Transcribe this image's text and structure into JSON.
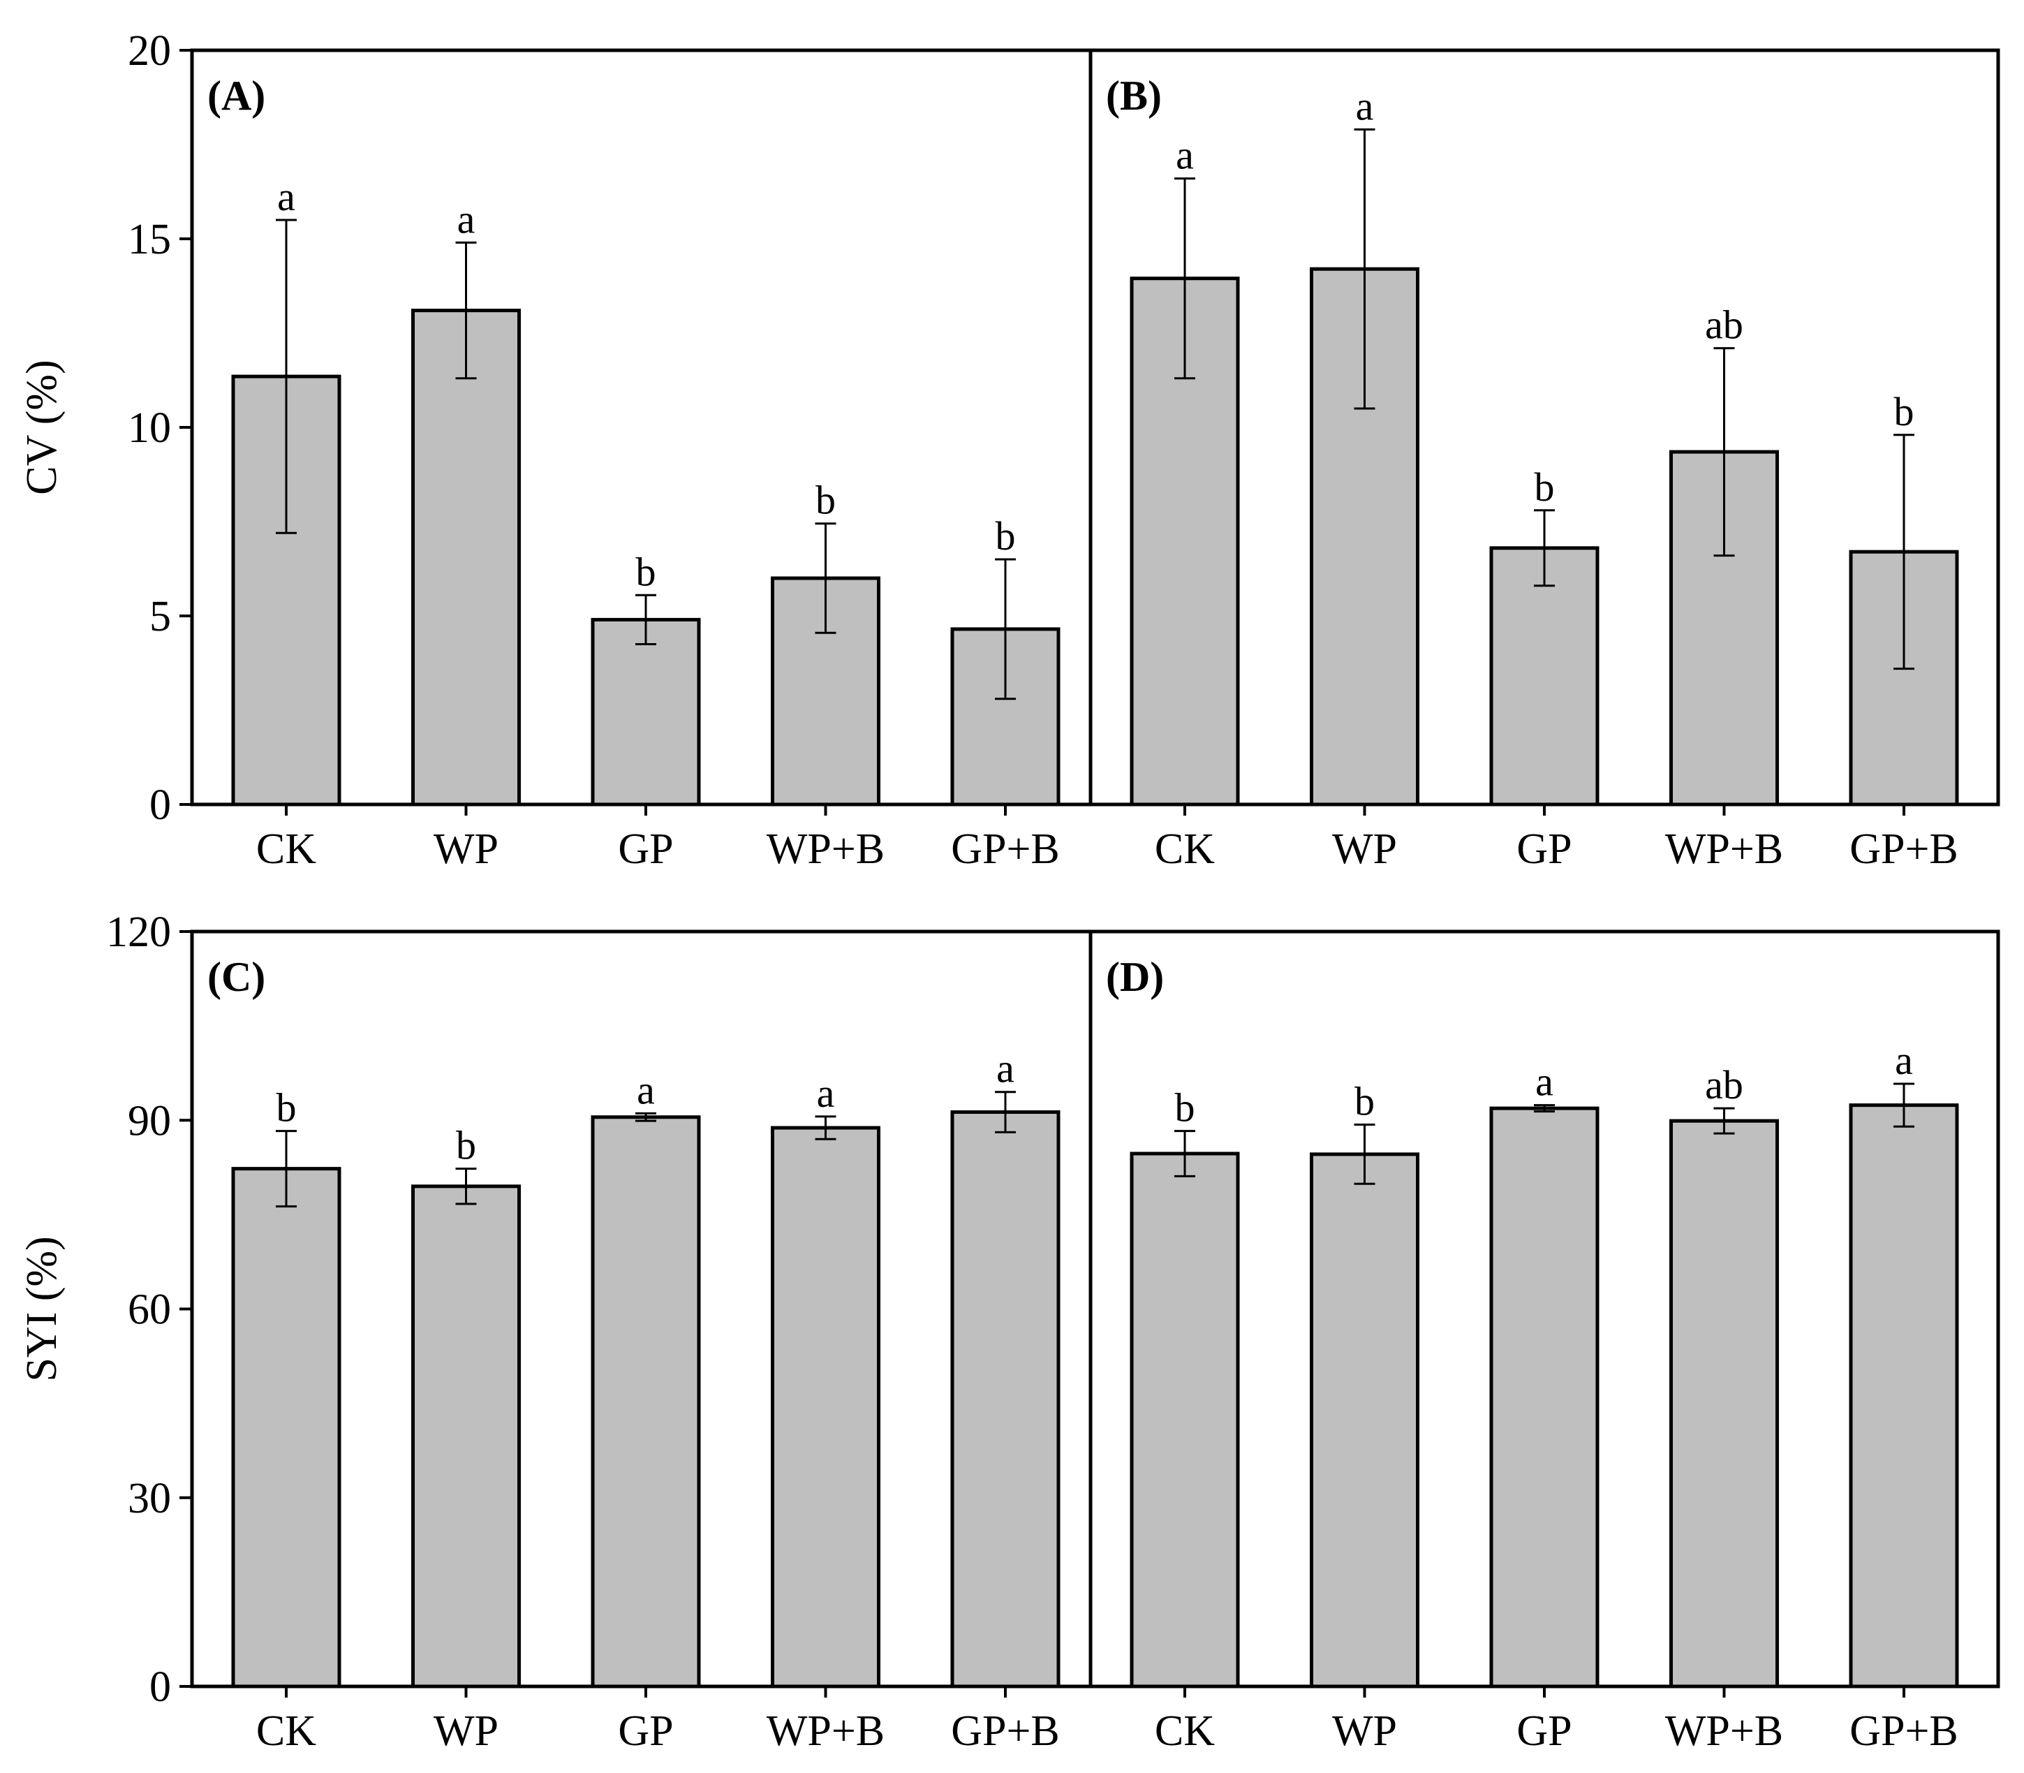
{
  "chart_data": {
    "type": "bar",
    "figure": "grouped panels",
    "bar_color": "#bfbfbf",
    "rows": [
      {
        "ylabel": "CV (%)",
        "ylim": [
          0,
          20
        ],
        "yticks": [
          0,
          5,
          10,
          15,
          20
        ],
        "panels": [
          {
            "label": "(A)",
            "categories": [
              "CK",
              "WP",
              "GP",
              "WP+B",
              "GP+B"
            ],
            "values": [
              11.35,
              13.1,
              4.9,
              6.0,
              4.65
            ],
            "errors": [
              4.15,
              1.8,
              0.65,
              1.45,
              1.85
            ],
            "significance": [
              "a",
              "a",
              "b",
              "b",
              "b"
            ]
          },
          {
            "label": "(B)",
            "categories": [
              "CK",
              "WP",
              "GP",
              "WP+B",
              "GP+B"
            ],
            "values": [
              13.95,
              14.2,
              6.8,
              9.35,
              6.7
            ],
            "errors": [
              2.65,
              3.7,
              1.0,
              2.75,
              3.1
            ],
            "significance": [
              "a",
              "a",
              "b",
              "ab",
              "b"
            ]
          }
        ]
      },
      {
        "ylabel": "SYI (%)",
        "ylim": [
          0,
          120
        ],
        "yticks": [
          0,
          30,
          60,
          90,
          120
        ],
        "panels": [
          {
            "label": "(C)",
            "categories": [
              "CK",
              "WP",
              "GP",
              "WP+B",
              "GP+B"
            ],
            "values": [
              82.3,
              79.5,
              90.5,
              88.8,
              91.3
            ],
            "errors": [
              6.0,
              2.8,
              0.6,
              1.8,
              3.2
            ],
            "significance": [
              "b",
              "b",
              "a",
              "a",
              "a"
            ]
          },
          {
            "label": "(D)",
            "categories": [
              "CK",
              "WP",
              "GP",
              "WP+B",
              "GP+B"
            ],
            "values": [
              84.7,
              84.6,
              91.9,
              89.9,
              92.4
            ],
            "errors": [
              3.6,
              4.7,
              0.5,
              2.0,
              3.4
            ],
            "significance": [
              "b",
              "b",
              "a",
              "ab",
              "a"
            ]
          }
        ]
      }
    ]
  }
}
